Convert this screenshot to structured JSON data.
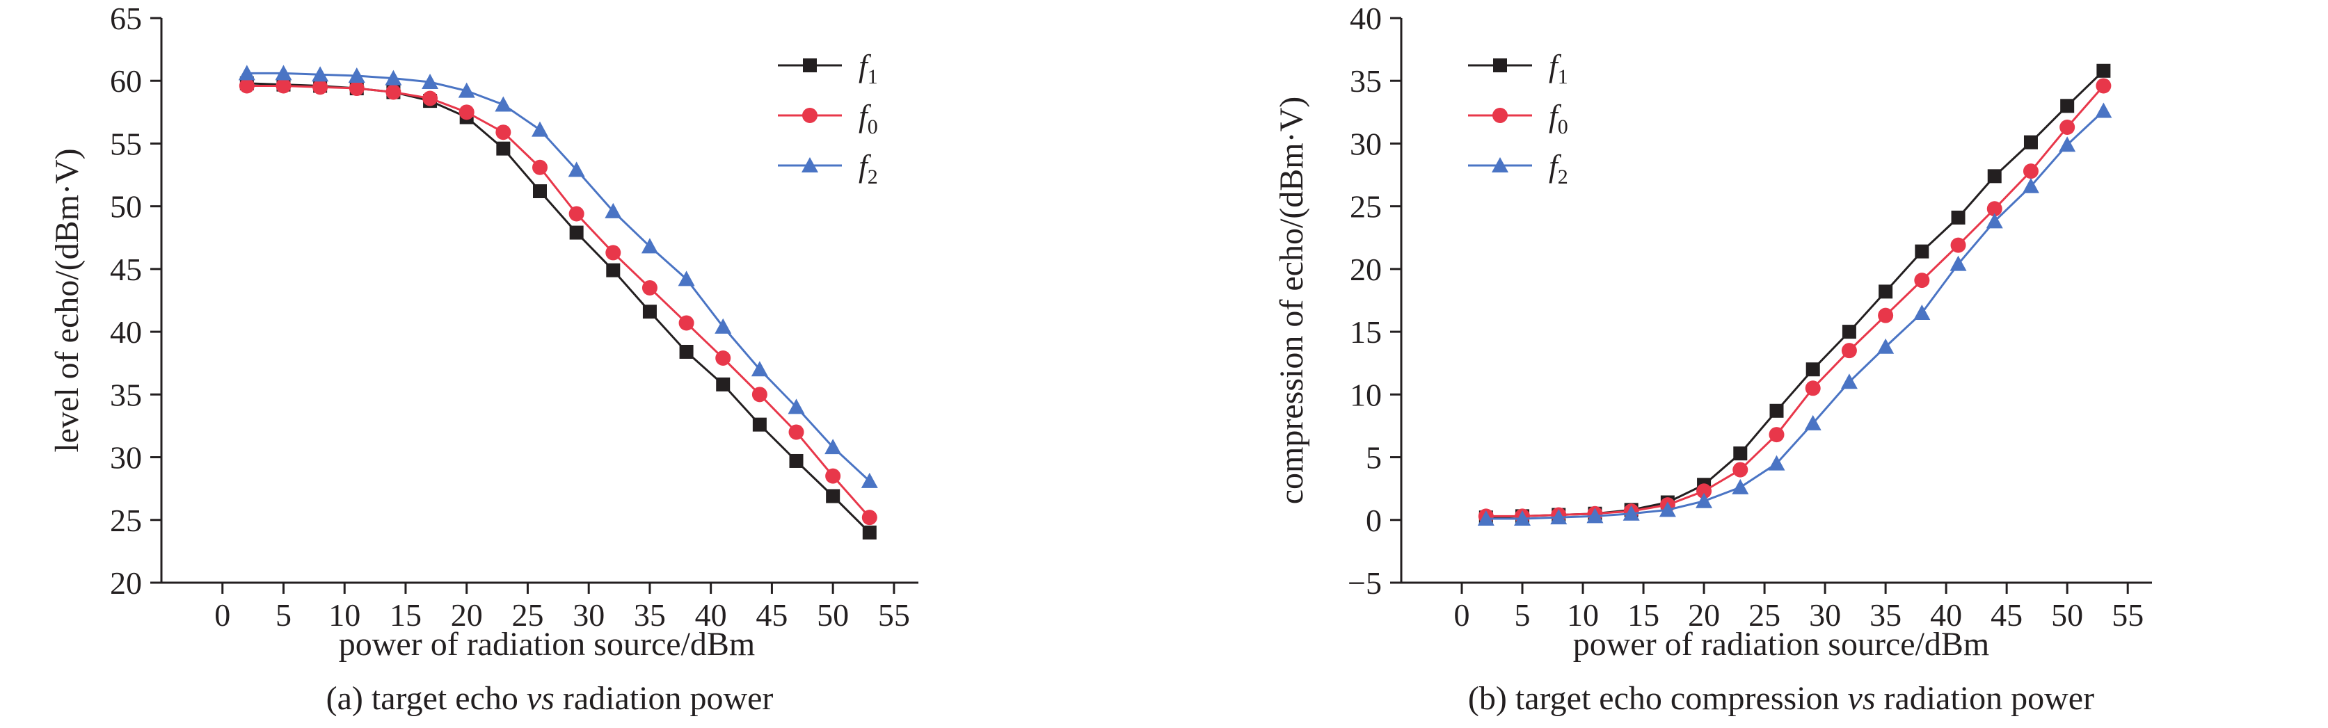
{
  "chart_data": [
    {
      "type": "line",
      "caption": {
        "prefix": "(a) target echo ",
        "italic": "vs",
        "suffix": " radiation power"
      },
      "xlabel": "power of radiation source/dBm",
      "ylabel": "level of echo/(dBm·V)",
      "xlim": [
        -5,
        57
      ],
      "ylim": [
        20,
        65
      ],
      "xticks": [
        0,
        5,
        10,
        15,
        20,
        25,
        30,
        35,
        40,
        45,
        50,
        55
      ],
      "yticks": [
        20,
        25,
        30,
        35,
        40,
        45,
        50,
        55,
        60,
        65
      ],
      "xtick_labels": [
        "0",
        "5",
        "10",
        "15",
        "20",
        "25",
        "30",
        "35",
        "40",
        "45",
        "50",
        "55"
      ],
      "ytick_labels": [
        "20",
        "25",
        "30",
        "35",
        "40",
        "45",
        "50",
        "55",
        "60",
        "65"
      ],
      "legend_position": "top-right",
      "x": [
        2,
        5,
        8,
        11,
        14,
        17,
        20,
        23,
        26,
        29,
        32,
        35,
        38,
        41,
        44,
        47,
        50,
        53
      ],
      "series": [
        {
          "name": "f",
          "sub": "1",
          "color": "#231f20",
          "marker": "square",
          "values": [
            59.8,
            59.7,
            59.6,
            59.4,
            59.1,
            58.4,
            57.1,
            54.6,
            51.2,
            47.9,
            44.9,
            41.6,
            38.4,
            35.8,
            32.6,
            29.7,
            26.9,
            24.0
          ]
        },
        {
          "name": "f",
          "sub": "0",
          "color": "#e8374a",
          "marker": "circle",
          "values": [
            59.6,
            59.6,
            59.5,
            59.4,
            59.1,
            58.6,
            57.5,
            55.9,
            53.1,
            49.4,
            46.3,
            43.5,
            40.7,
            37.9,
            35.0,
            32.0,
            28.5,
            25.2
          ]
        },
        {
          "name": "f",
          "sub": "2",
          "color": "#4a74c4",
          "marker": "triangle",
          "values": [
            60.6,
            60.6,
            60.5,
            60.4,
            60.2,
            59.9,
            59.2,
            58.1,
            56.1,
            52.9,
            49.6,
            46.8,
            44.2,
            40.4,
            37.0,
            34.0,
            30.8,
            28.1
          ]
        }
      ]
    },
    {
      "type": "line",
      "caption": {
        "prefix": "(b) target echo compression ",
        "italic": "vs",
        "suffix": " radiation power"
      },
      "xlabel": "power of radiation source/dBm",
      "ylabel": "compression of echo/(dBm·V)",
      "xlim": [
        -5,
        57
      ],
      "ylim": [
        -5,
        40
      ],
      "xticks": [
        0,
        5,
        10,
        15,
        20,
        25,
        30,
        35,
        40,
        45,
        50,
        55
      ],
      "yticks": [
        -5,
        0,
        5,
        10,
        15,
        20,
        25,
        30,
        35,
        40
      ],
      "xtick_labels": [
        "0",
        "5",
        "10",
        "15",
        "20",
        "25",
        "30",
        "35",
        "40",
        "45",
        "50",
        "55"
      ],
      "ytick_labels": [
        "−5",
        "0",
        "5",
        "10",
        "15",
        "20",
        "25",
        "30",
        "35",
        "40"
      ],
      "legend_position": "top-left",
      "x": [
        2,
        5,
        8,
        11,
        14,
        17,
        20,
        23,
        26,
        29,
        32,
        35,
        38,
        41,
        44,
        47,
        50,
        53
      ],
      "series": [
        {
          "name": "f",
          "sub": "1",
          "color": "#231f20",
          "marker": "square",
          "values": [
            0.2,
            0.3,
            0.4,
            0.5,
            0.8,
            1.4,
            2.8,
            5.3,
            8.7,
            12.0,
            15.0,
            18.2,
            21.4,
            24.1,
            27.4,
            30.1,
            33.0,
            35.8
          ]
        },
        {
          "name": "f",
          "sub": "0",
          "color": "#e8374a",
          "marker": "circle",
          "values": [
            0.3,
            0.3,
            0.4,
            0.5,
            0.7,
            1.2,
            2.3,
            4.0,
            6.8,
            10.5,
            13.5,
            16.3,
            19.1,
            21.9,
            24.8,
            27.8,
            31.3,
            34.6
          ]
        },
        {
          "name": "f",
          "sub": "2",
          "color": "#4a74c4",
          "marker": "triangle",
          "values": [
            0.1,
            0.1,
            0.2,
            0.3,
            0.5,
            0.8,
            1.5,
            2.6,
            4.5,
            7.7,
            11.0,
            13.8,
            16.5,
            20.4,
            23.8,
            26.6,
            29.9,
            32.6
          ]
        }
      ]
    }
  ]
}
